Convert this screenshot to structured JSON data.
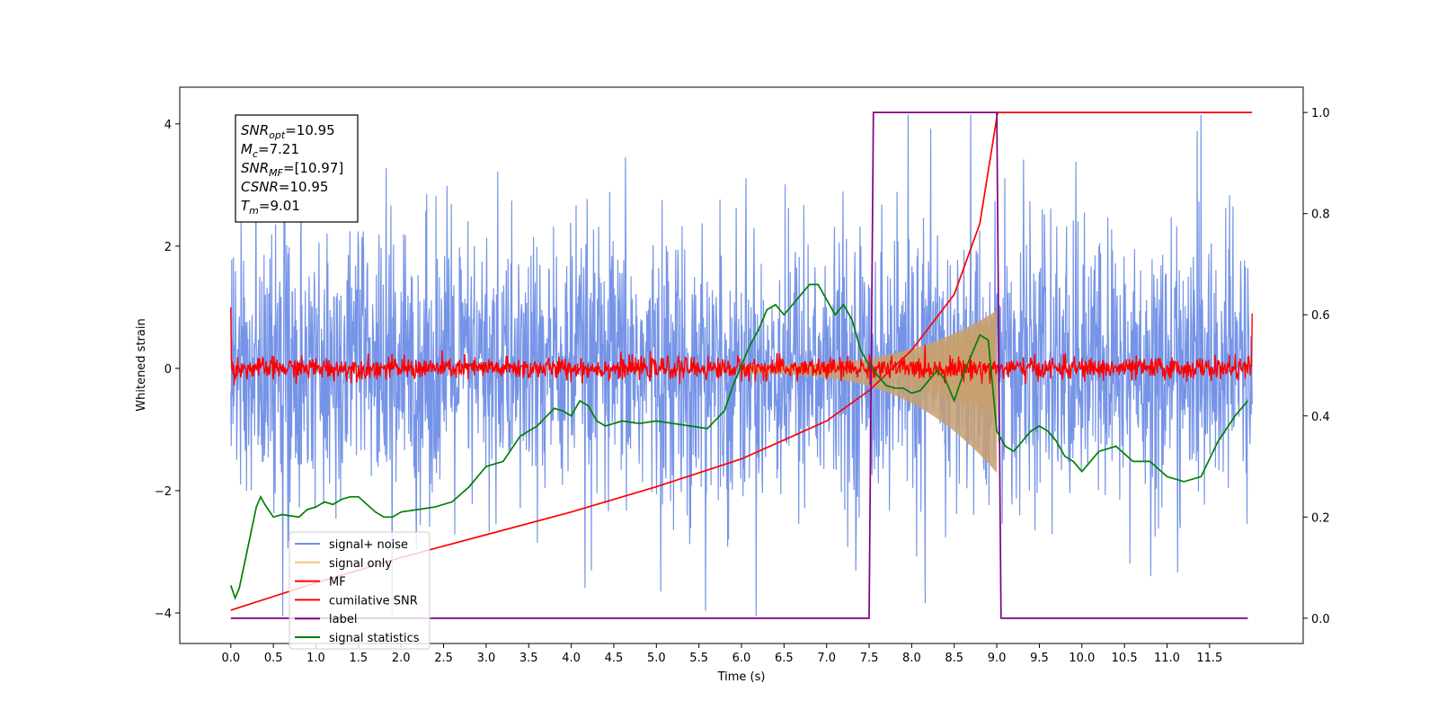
{
  "chart_data": {
    "type": "line",
    "title": "",
    "xlabel": "Time (s)",
    "ylabel": "Whitened strain",
    "xlim": [
      -0.6,
      12.6
    ],
    "ylim": [
      -4.5,
      4.6
    ],
    "ylim_right": [
      -0.05,
      1.05
    ],
    "x_ticks": [
      "0.0",
      "0.5",
      "1.0",
      "1.5",
      "2.0",
      "2.5",
      "3.0",
      "3.5",
      "4.0",
      "4.5",
      "5.0",
      "5.5",
      "6.0",
      "6.5",
      "7.0",
      "7.5",
      "8.0",
      "8.5",
      "9.0",
      "9.5",
      "10.0",
      "10.5",
      "11.0",
      "11.5"
    ],
    "y_ticks_left": [
      "−4",
      "−2",
      "0",
      "2",
      "4"
    ],
    "y_ticks_right": [
      "0.0",
      "0.2",
      "0.4",
      "0.6",
      "0.8",
      "1.0"
    ],
    "grid": false,
    "legend_position": "lower-left",
    "annotation": [
      {
        "sym": "SNR",
        "sub": "opt",
        "val": "=10.95"
      },
      {
        "sym": "M",
        "sub": "c",
        "val": "=7.21"
      },
      {
        "sym": "SNR",
        "sub": "MF",
        "val": "=[10.97]"
      },
      {
        "sym": "CSNR",
        "sub": "",
        "val": "=10.95"
      },
      {
        "sym": "T",
        "sub": "m",
        "val": "=9.01"
      }
    ],
    "series": [
      {
        "name": "signal+ noise",
        "color": "#6f8ee6",
        "axis": "left",
        "kind": "noise",
        "x_range": [
          0,
          12
        ],
        "envelope": [
          -3.0,
          3.0
        ]
      },
      {
        "name": "signal only",
        "color": "#f5c97a",
        "axis": "left",
        "kind": "chirp",
        "x_range": [
          6.0,
          9.0
        ],
        "amplitude_end": 0.9
      },
      {
        "name": "MF",
        "color": "#ff0000",
        "axis": "left",
        "kind": "noise",
        "x_range": [
          0,
          12
        ],
        "envelope": [
          -0.25,
          0.3
        ]
      },
      {
        "name": "cumilative SNR",
        "color": "#ff0000",
        "axis": "right",
        "x": [
          0.0,
          1.0,
          2.0,
          3.0,
          4.0,
          5.0,
          6.0,
          7.0,
          7.5,
          8.0,
          8.5,
          8.8,
          9.0,
          9.01,
          12.0
        ],
        "y": [
          0.016,
          0.07,
          0.12,
          0.165,
          0.21,
          0.26,
          0.315,
          0.39,
          0.45,
          0.53,
          0.64,
          0.78,
          0.99,
          1.0,
          1.0
        ]
      },
      {
        "name": "label",
        "color": "#800080",
        "axis": "right",
        "x": [
          0.0,
          7.5,
          7.55,
          9.0,
          9.05,
          11.95
        ],
        "y": [
          0.0,
          0.0,
          1.0,
          1.0,
          0.0,
          0.0
        ]
      },
      {
        "name": "signal statistics",
        "color": "#008000",
        "axis": "right",
        "x": [
          0.0,
          0.05,
          0.1,
          0.2,
          0.3,
          0.35,
          0.4,
          0.5,
          0.6,
          0.8,
          0.9,
          1.0,
          1.1,
          1.2,
          1.3,
          1.4,
          1.5,
          1.6,
          1.7,
          1.8,
          1.9,
          2.0,
          2.2,
          2.4,
          2.6,
          2.8,
          3.0,
          3.2,
          3.4,
          3.6,
          3.8,
          3.9,
          4.0,
          4.1,
          4.2,
          4.3,
          4.4,
          4.6,
          4.8,
          5.0,
          5.2,
          5.4,
          5.6,
          5.8,
          5.9,
          6.0,
          6.1,
          6.2,
          6.3,
          6.4,
          6.5,
          6.6,
          6.7,
          6.8,
          6.9,
          7.0,
          7.1,
          7.2,
          7.3,
          7.4,
          7.5,
          7.6,
          7.7,
          7.8,
          7.9,
          8.0,
          8.1,
          8.2,
          8.3,
          8.4,
          8.5,
          8.6,
          8.7,
          8.8,
          8.9,
          9.0,
          9.1,
          9.2,
          9.3,
          9.4,
          9.5,
          9.6,
          9.7,
          9.8,
          9.9,
          10.0,
          10.2,
          10.4,
          10.6,
          10.8,
          11.0,
          11.2,
          11.4,
          11.6,
          11.8,
          11.9,
          11.95
        ],
        "y": [
          0.065,
          0.04,
          0.06,
          0.14,
          0.22,
          0.24,
          0.225,
          0.2,
          0.205,
          0.2,
          0.215,
          0.22,
          0.23,
          0.225,
          0.235,
          0.24,
          0.24,
          0.225,
          0.21,
          0.2,
          0.2,
          0.21,
          0.215,
          0.22,
          0.23,
          0.26,
          0.3,
          0.31,
          0.36,
          0.38,
          0.415,
          0.41,
          0.4,
          0.43,
          0.42,
          0.39,
          0.38,
          0.39,
          0.385,
          0.39,
          0.385,
          0.38,
          0.375,
          0.41,
          0.46,
          0.5,
          0.54,
          0.57,
          0.61,
          0.62,
          0.6,
          0.62,
          0.64,
          0.66,
          0.66,
          0.63,
          0.6,
          0.62,
          0.59,
          0.53,
          0.5,
          0.48,
          0.46,
          0.455,
          0.455,
          0.445,
          0.45,
          0.47,
          0.49,
          0.47,
          0.43,
          0.48,
          0.52,
          0.56,
          0.55,
          0.37,
          0.34,
          0.33,
          0.35,
          0.37,
          0.38,
          0.37,
          0.35,
          0.32,
          0.31,
          0.29,
          0.33,
          0.34,
          0.31,
          0.31,
          0.28,
          0.27,
          0.28,
          0.35,
          0.4,
          0.42,
          0.43
        ]
      }
    ]
  }
}
